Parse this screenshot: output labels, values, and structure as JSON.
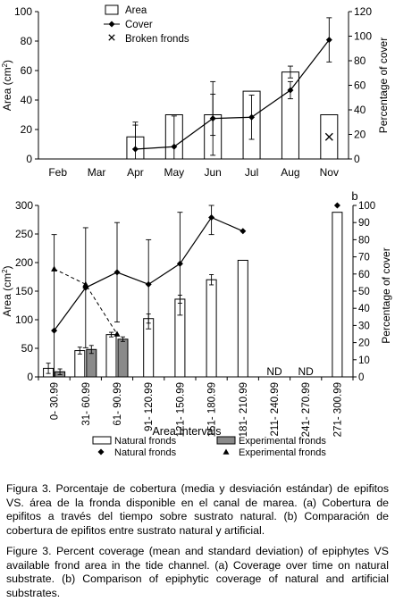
{
  "chart_data": [
    {
      "panel": "a",
      "type": "bar+line",
      "xlabel": "",
      "ylabel": "Area (cm2)",
      "y2label": "Percentage of cover",
      "ylim": [
        0,
        100
      ],
      "y2lim": [
        0,
        120
      ],
      "yticks": [
        0,
        20,
        40,
        60,
        80,
        100
      ],
      "y2ticks": [
        0,
        20,
        40,
        60,
        80,
        100,
        120
      ],
      "categories": [
        "Feb",
        "Mar",
        "Apr",
        "May",
        "Jun",
        "Jul",
        "Aug",
        "Nov"
      ],
      "legend": {
        "area": "Area",
        "cover": "Cover",
        "broken": "Broken fronds"
      },
      "area": [
        null,
        null,
        15,
        30,
        30,
        46,
        59,
        30
      ],
      "area_err": [
        null,
        null,
        8,
        0,
        14,
        0,
        4,
        0
      ],
      "cover": [
        null,
        null,
        8,
        10,
        33,
        34,
        56,
        97
      ],
      "cover_err": [
        null,
        null,
        22,
        25,
        30,
        18,
        7,
        18
      ],
      "broken_fronds_marker": "x",
      "broken_fronds_category": "Nov",
      "grid": false
    },
    {
      "panel": "b",
      "panel_label": "b",
      "type": "bar+line",
      "xlabel": "Area Intervals",
      "ylabel": "Area (cm2)",
      "y2label": "Percentage of cover",
      "ylim": [
        0,
        300
      ],
      "y2lim": [
        0,
        100
      ],
      "yticks": [
        0,
        50,
        100,
        150,
        200,
        250,
        300
      ],
      "y2ticks": [
        0,
        10,
        20,
        30,
        40,
        50,
        60,
        70,
        80,
        90,
        100
      ],
      "categories": [
        "0- 30.99",
        "31- 60.99",
        "61- 90.99",
        "91- 120.99",
        "121- 150.99",
        "151- 180.99",
        "181- 210.99",
        "211- 240.99",
        "241- 270.99",
        "271- 300.99"
      ],
      "legend": {
        "natural_bar": "Natural fronds",
        "experimental_bar": "Experimental fronds",
        "natural_line": "Natural fronds",
        "experimental_line": "Experimental fronds"
      },
      "nd_label": "ND",
      "nd_categories": [
        "211- 240.99",
        "241- 270.99"
      ],
      "natural_area": [
        15,
        46,
        74,
        102,
        136,
        170,
        204,
        null,
        null,
        288
      ],
      "natural_area_err": [
        9,
        6,
        4,
        8,
        7,
        9,
        0,
        null,
        null,
        0
      ],
      "experimental_area": [
        9,
        48,
        66,
        null,
        null,
        null,
        null,
        null,
        null,
        null
      ],
      "experimental_area_err": [
        5,
        7,
        4,
        null,
        null,
        null,
        null,
        null,
        null,
        null
      ],
      "natural_cover": [
        27,
        52,
        61,
        54,
        66,
        93,
        85,
        null,
        null,
        100
      ],
      "natural_cover_err": [
        56,
        35,
        29,
        26,
        30,
        10,
        0,
        null,
        null,
        0
      ],
      "experimental_cover": [
        63,
        54,
        25,
        null,
        null,
        null,
        null,
        null,
        null,
        null
      ],
      "grid": false
    }
  ],
  "captions": {
    "es": {
      "lead": "Figura 3.",
      "body": "Porcentaje de cobertura (media y desviación estándar) de epifitos VS. área de la fronda disponible en el canal de marea. (a) Cobertura de epifitos a través del tiempo sobre sustrato natural. (b) Comparación de cobertura de epifitos entre sustrato natural y artificial."
    },
    "en": {
      "lead": "Figure 3.",
      "body": "Percent coverage (mean and standard deviation) of epiphytes VS available frond area in the tide channel. (a) Coverage over time on natural substrate. (b) Comparison of epiphytic coverage of natural and artificial substrates."
    }
  }
}
